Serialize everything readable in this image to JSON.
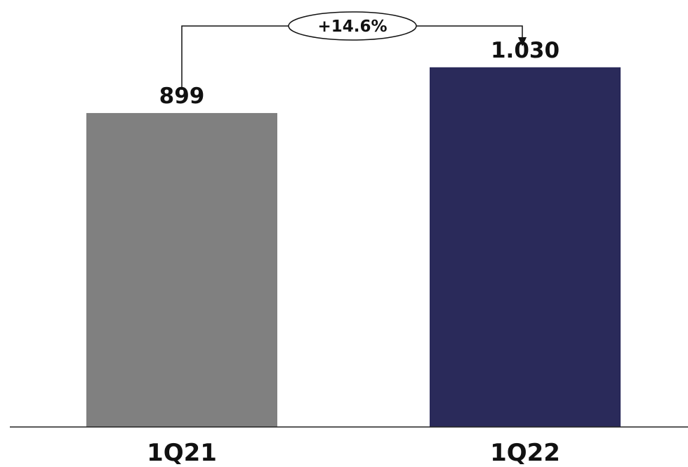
{
  "chart_data": {
    "type": "bar",
    "title": "",
    "xlabel": "",
    "ylabel": "",
    "categories": [
      "1Q21",
      "1Q22"
    ],
    "values": [
      899,
      1030
    ],
    "value_labels": [
      "899",
      "1.030"
    ],
    "bar_colors": [
      "#808080",
      "#2a2a5a"
    ],
    "ylim": [
      0,
      1100
    ],
    "grid": false,
    "legend": "none",
    "annotation": {
      "from": "1Q21",
      "to": "1Q22",
      "label": "+14.6%"
    }
  }
}
